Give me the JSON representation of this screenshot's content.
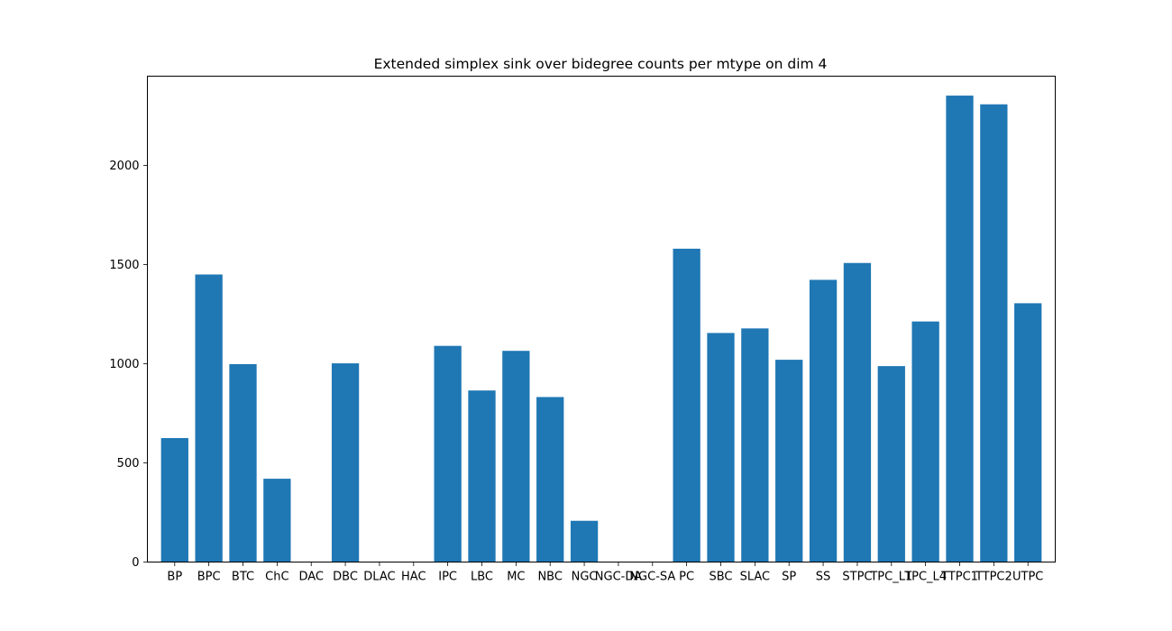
{
  "chart_data": {
    "type": "bar",
    "title": "Extended simplex sink over bidegree counts per mtype on dim 4",
    "xlabel": "",
    "ylabel": "",
    "categories": [
      "BP",
      "BPC",
      "BTC",
      "ChC",
      "DAC",
      "DBC",
      "DLAC",
      "HAC",
      "IPC",
      "LBC",
      "MC",
      "NBC",
      "NGC",
      "NGC-DA",
      "NGC-SA",
      "PC",
      "SBC",
      "SLAC",
      "SP",
      "SS",
      "STPC",
      "TPC_L1",
      "TPC_L4",
      "TTPC1",
      "TTPC2",
      "UTPC"
    ],
    "values": [
      625,
      1450,
      998,
      420,
      0,
      1002,
      0,
      0,
      1090,
      865,
      1065,
      832,
      208,
      0,
      0,
      1580,
      1155,
      1178,
      1020,
      1423,
      1508,
      988,
      1213,
      2352,
      2308,
      1305
    ],
    "ylim": [
      0,
      2450
    ],
    "yticks": [
      0,
      500,
      1000,
      1500,
      2000
    ],
    "grid": false,
    "legend": "none",
    "bar_color": "#1f77b4"
  }
}
